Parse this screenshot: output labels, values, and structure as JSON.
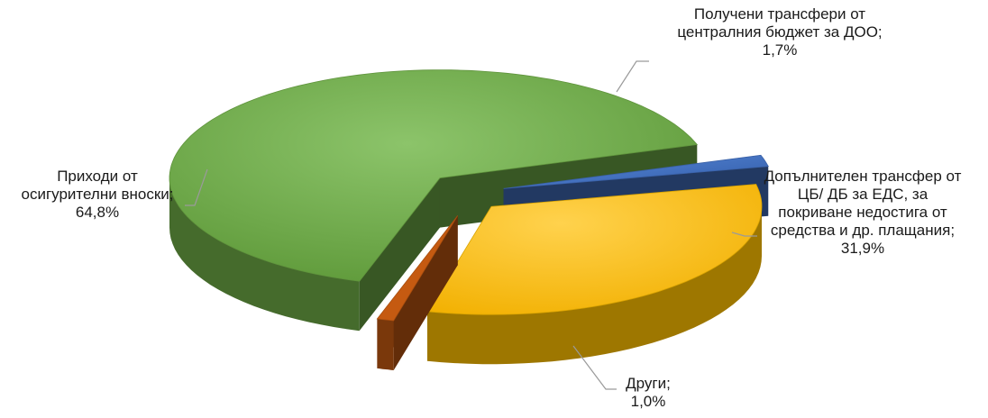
{
  "chart_data": {
    "type": "pie",
    "title": "",
    "series": [
      {
        "name": "",
        "slices": [
          {
            "label_lines": [
              "Получени трансфери от",
              "централния бюджет за ДОО;"
            ],
            "value": 1.7,
            "value_label": "1,7%",
            "color": "#4472c4"
          },
          {
            "label_lines": [
              "Допълнителен трансфер от",
              "ЦБ/ ДБ за ЕДС, за",
              "покриване недостига от",
              "средства и др. плащания;"
            ],
            "value": 31.9,
            "value_label": "31,9%",
            "color": "#ffc000"
          },
          {
            "label_lines": [
              "Други;"
            ],
            "value": 1.0,
            "value_label": "1,0%",
            "color": "#c55a11"
          },
          {
            "label_lines": [
              "Приходи от",
              "осигурителни вноски;"
            ],
            "value": 64.8,
            "value_label": "64,8%",
            "color": "#70ad47"
          }
        ]
      }
    ],
    "legend": "none",
    "style": "3d-exploded"
  }
}
